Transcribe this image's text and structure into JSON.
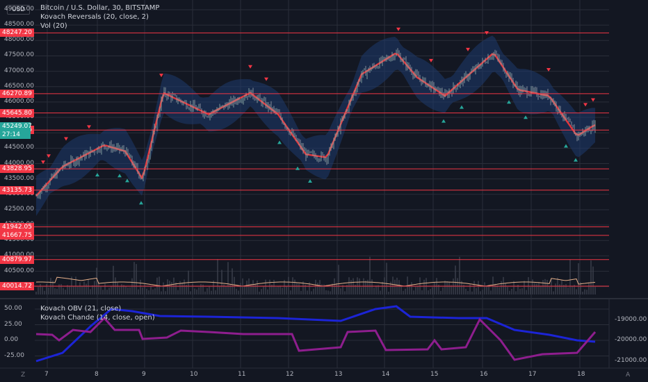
{
  "symbol_line": "Bitcoin / U.S. Dollar, 30, BITSTAMP",
  "indicator_1": "Kovach Reversals (20, close, 2)",
  "indicator_2": "Vol (20)",
  "osc_1": "Kovach OBV (21, close)",
  "osc_2": "Kovach Chande (14, close, open)",
  "currency": "USD",
  "current_price": "45249.07",
  "countdown": "27:14",
  "price_ticks": [
    "49000.00",
    "48500.00",
    "48000.00",
    "47500.00",
    "47000.00",
    "46500.00",
    "46000.00",
    "45500.00",
    "45000.00",
    "44500.00",
    "44000.00",
    "43500.00",
    "43000.00",
    "42500.00",
    "42000.00",
    "41500.00",
    "41000.00",
    "40500.00",
    "40000.00"
  ],
  "levels": [
    "48247.20",
    "46270.89",
    "45645.80",
    "45089.96",
    "43828.95",
    "43135.73",
    "41942.05",
    "41667.75",
    "40879.97",
    "40014.72"
  ],
  "osc_left_ticks": [
    "50.00",
    "25.00",
    "0.00",
    "-25.00"
  ],
  "osc_right_ticks": [
    "-19000.00",
    "-20000.00",
    "-21000.00"
  ],
  "time_ticks": [
    "7",
    "8",
    "9",
    "10",
    "11",
    "12",
    "13",
    "14",
    "15",
    "16",
    "17",
    "18"
  ],
  "corner_left": "Z",
  "corner_right": "A",
  "colors": {
    "bg": "#131722",
    "level": "#f23645",
    "ma": "#e0383e",
    "band": "#1e3a6e",
    "obv": "#1c24d6",
    "chande": "#8e1e8e",
    "vol_line": "#e7b08a",
    "up": "#26a69a",
    "grid": "#2a2e39"
  }
}
